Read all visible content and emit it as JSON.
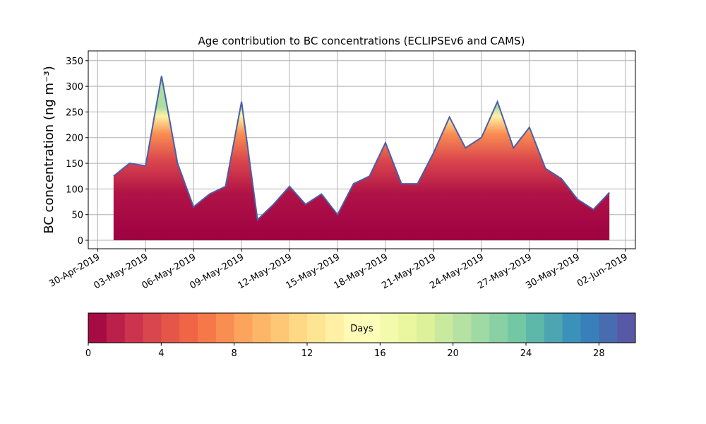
{
  "chart_data": {
    "type": "area",
    "title": "Age contribution to BC concentrations (ECLIPSEv6 and CAMS)",
    "ylabel": "BC concentration (ng m⁻³)",
    "x": [
      "2019-05-01",
      "2019-05-02",
      "2019-05-03",
      "2019-05-04",
      "2019-05-05",
      "2019-05-06",
      "2019-05-07",
      "2019-05-08",
      "2019-05-09",
      "2019-05-10",
      "2019-05-11",
      "2019-05-12",
      "2019-05-13",
      "2019-05-14",
      "2019-05-15",
      "2019-05-16",
      "2019-05-17",
      "2019-05-18",
      "2019-05-19",
      "2019-05-20",
      "2019-05-21",
      "2019-05-22",
      "2019-05-23",
      "2019-05-24",
      "2019-05-25",
      "2019-05-26",
      "2019-05-27",
      "2019-05-28",
      "2019-05-29",
      "2019-05-30",
      "2019-05-31",
      "2019-06-01"
    ],
    "series": [
      {
        "color": "#4a5fa8",
        "values": [
          125,
          150,
          145,
          320,
          150,
          65,
          90,
          105,
          270,
          40,
          70,
          105,
          70,
          90,
          50,
          110,
          125,
          190,
          110,
          110,
          170,
          240,
          180,
          200,
          270,
          180,
          220,
          140,
          120,
          80,
          60,
          93
        ]
      }
    ],
    "xlim": [
      "2019-04-29T10:00",
      "2019-06-02T15:00"
    ],
    "xticks": [
      {
        "value": "2019-04-30",
        "label": "30-Apr-2019"
      },
      {
        "value": "2019-05-03",
        "label": "03-May-2019"
      },
      {
        "value": "2019-05-06",
        "label": "06-May-2019"
      },
      {
        "value": "2019-05-09",
        "label": "09-May-2019"
      },
      {
        "value": "2019-05-12",
        "label": "12-May-2019"
      },
      {
        "value": "2019-05-15",
        "label": "15-May-2019"
      },
      {
        "value": "2019-05-18",
        "label": "18-May-2019"
      },
      {
        "value": "2019-05-21",
        "label": "21-May-2019"
      },
      {
        "value": "2019-05-24",
        "label": "24-May-2019"
      },
      {
        "value": "2019-05-27",
        "label": "27-May-2019"
      },
      {
        "value": "2019-05-30",
        "label": "30-May-2019"
      },
      {
        "value": "2019-06-02",
        "label": "02-Jun-2019"
      }
    ],
    "ylim": [
      -16.5,
      369
    ],
    "yticks": [
      0,
      50,
      100,
      150,
      200,
      250,
      300,
      350
    ],
    "grid": true,
    "colorbar": {
      "label": "Days",
      "clim": [
        0,
        30
      ],
      "ticks": [
        0,
        4,
        8,
        12,
        16,
        20,
        24,
        28
      ],
      "colormap": [
        "#9e0142",
        "#d53e4f",
        "#f46d43",
        "#fdae61",
        "#fee08b",
        "#ffffbf",
        "#e6f598",
        "#abdda4",
        "#66c2a5",
        "#3288bd",
        "#5e4fa2"
      ]
    }
  }
}
